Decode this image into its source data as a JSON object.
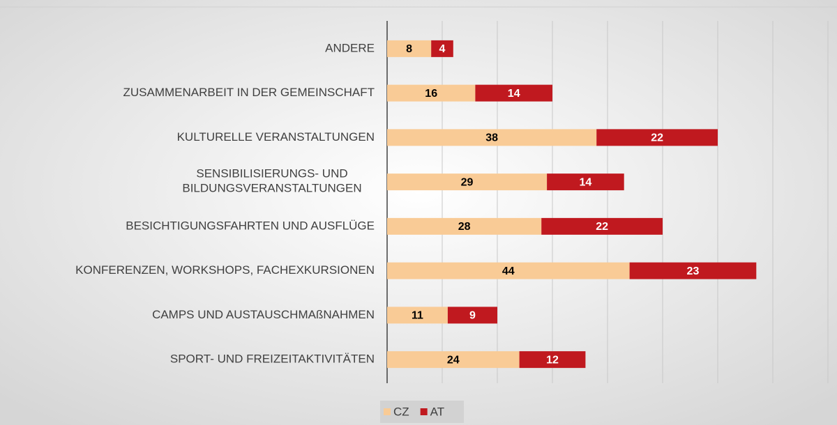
{
  "chart_data": {
    "type": "stacked_barh",
    "categories": [
      "ANDERE",
      "ZUSAMMENARBEIT IN DER GEMEINSCHAFT",
      "KULTURELLE VERANSTALTUNGEN",
      "SENSIBILISIERUNGS- UND\nBILDUNGSVERANSTALTUNGEN",
      "BESICHTIGUNGSFAHRTEN UND AUSFLÜGE",
      "KONFERENZEN, WORKSHOPS, FACHEXKURSIONEN",
      "CAMPS UND AUSTAUSCHMAßNAHMEN",
      "SPORT- UND FREIZEITAKTIVITÄTEN"
    ],
    "series": [
      {
        "name": "CZ",
        "color": "#f9cb96",
        "values": [
          8,
          16,
          38,
          29,
          28,
          44,
          11,
          24
        ]
      },
      {
        "name": "AT",
        "color": "#c0191f",
        "values": [
          4,
          14,
          22,
          14,
          22,
          23,
          9,
          12
        ]
      }
    ],
    "xlim": [
      0,
      80
    ],
    "xticks": [
      0,
      10,
      20,
      30,
      40,
      50,
      60,
      70,
      80
    ],
    "grid": true,
    "legend": "bottom"
  }
}
